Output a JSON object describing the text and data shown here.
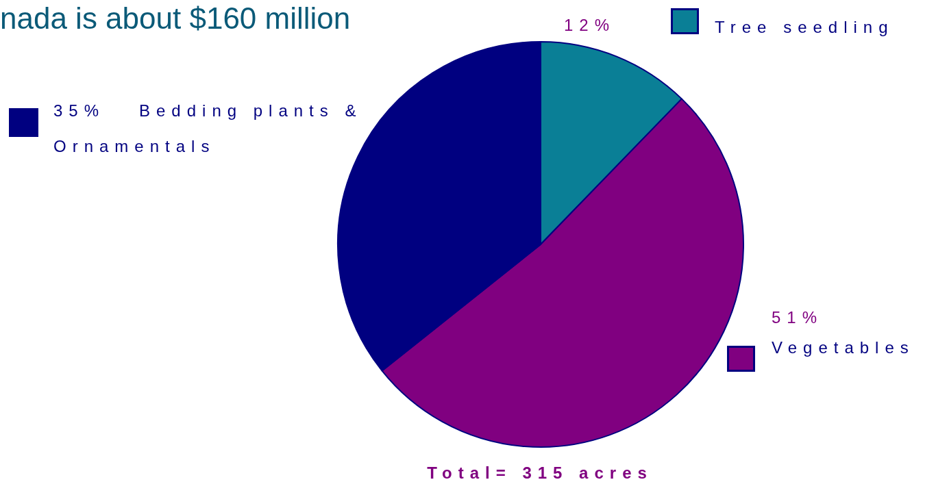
{
  "chart_data": {
    "type": "pie",
    "title": "nada is about $160 million",
    "categories": [
      "Tree seedling",
      "Vegetables",
      "Bedding plants & Ornamentals"
    ],
    "values": [
      12,
      51,
      35
    ],
    "colors": [
      "#0a7f96",
      "#800080",
      "#000080"
    ],
    "value_labels": [
      "12%",
      "51%",
      "35%"
    ],
    "legend": "right",
    "annotations": [
      "Total= 315 acres"
    ]
  }
}
